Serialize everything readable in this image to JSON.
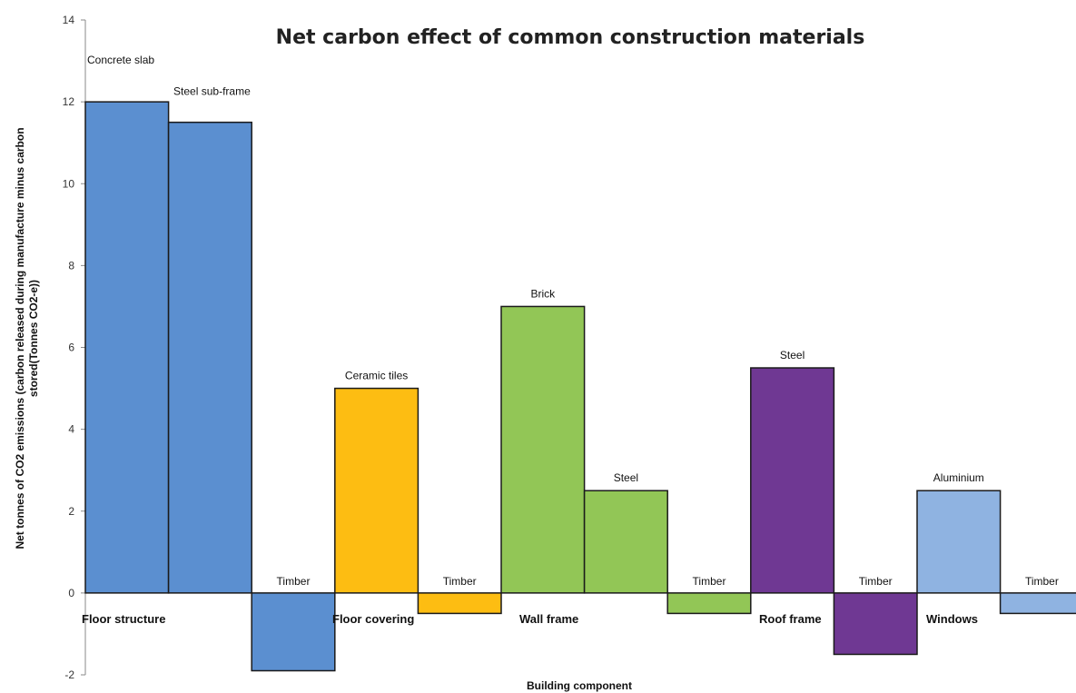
{
  "chart_data": {
    "type": "bar",
    "title": "Net carbon effect of common construction materials",
    "xlabel": "Building component",
    "ylabel": "Net tonnes of CO2 emissions (carbon released during manufacture minus carbon stored(Tonnes CO2-e))",
    "ylim": [
      -2,
      14
    ],
    "yticks": [
      -2,
      0,
      2,
      4,
      6,
      8,
      10,
      12,
      14
    ],
    "grid": false,
    "legend": "none",
    "groups": [
      {
        "name": "Floor structure",
        "color": "#5b8fd0",
        "bars": [
          {
            "label": "Concrete slab",
            "value": 12
          },
          {
            "label": "Steel sub-frame",
            "value": 11.5
          },
          {
            "label": "Timber",
            "value": -1.9
          }
        ]
      },
      {
        "name": "Floor covering",
        "color": "#fdbd12",
        "bars": [
          {
            "label": "Ceramic tiles",
            "value": 5
          },
          {
            "label": "Timber",
            "value": -0.5
          }
        ]
      },
      {
        "name": "Wall frame",
        "color": "#92c656",
        "bars": [
          {
            "label": "Brick",
            "value": 7
          },
          {
            "label": "Steel",
            "value": 2.5
          },
          {
            "label": "Timber",
            "value": -0.5
          }
        ]
      },
      {
        "name": "Roof frame",
        "color": "#6f3893",
        "bars": [
          {
            "label": "Steel",
            "value": 5.5
          },
          {
            "label": "Timber",
            "value": -1.5
          }
        ]
      },
      {
        "name": "Windows",
        "color": "#8fb3e1",
        "bars": [
          {
            "label": "Aluminium",
            "value": 2.5
          },
          {
            "label": "Timber",
            "value": -0.5
          }
        ]
      }
    ]
  }
}
